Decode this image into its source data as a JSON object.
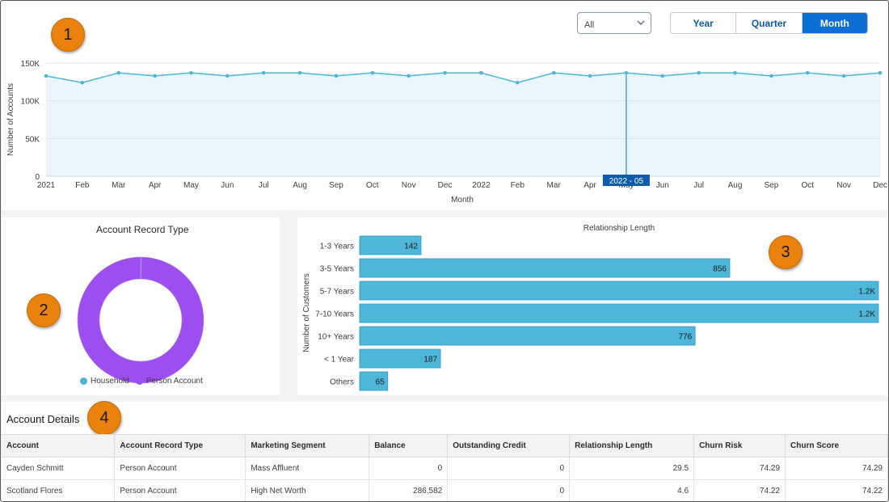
{
  "controls": {
    "period_select": {
      "value": "All"
    },
    "granularity": {
      "options": [
        "Year",
        "Quarter",
        "Month"
      ],
      "selected": "Month"
    }
  },
  "callouts": [
    "1",
    "2",
    "3",
    "4"
  ],
  "accounts_chart": {
    "type": "line",
    "ylabel": "Number of Accounts",
    "xlabel": "Month",
    "y_ticks": [
      "150K",
      "100K",
      "50K",
      "0"
    ],
    "x_tick_labels": [
      "2021",
      "Feb",
      "Mar",
      "Apr",
      "May",
      "Jun",
      "Jul",
      "Aug",
      "Sep",
      "Oct",
      "Nov",
      "Dec",
      "2022",
      "Feb",
      "Mar",
      "Apr",
      "May",
      "Jun",
      "Jul",
      "Aug",
      "Sep",
      "Oct",
      "Nov",
      "Dec"
    ],
    "values": [
      133000,
      124000,
      137000,
      133000,
      137000,
      133000,
      137000,
      137000,
      133000,
      137000,
      133000,
      137000,
      137000,
      124000,
      137000,
      133000,
      137000,
      133000,
      137000,
      137000,
      133000,
      137000,
      133000,
      137000
    ],
    "ylim": [
      0,
      150000
    ],
    "tooltip_label": "2022 - 05",
    "tooltip_index": 16,
    "line_color": "#4db6d9",
    "fill_color": "#e9f6fb"
  },
  "record_type_chart": {
    "type": "pie",
    "title": "Account Record Type",
    "legend": [
      {
        "label": "Household",
        "color": "#4bb5d8"
      },
      {
        "label": "Person Account",
        "color": "#9d4ef0"
      }
    ],
    "values": [
      0.2,
      99.8
    ]
  },
  "relationship_chart": {
    "type": "bar",
    "title": "Relationship Length",
    "ylabel": "Number of Customers",
    "categories": [
      "1-3 Years",
      "3-5 Years",
      "5-7 Years",
      "7-10 Years",
      "10+ Years",
      "< 1 Year",
      "Others"
    ],
    "values": [
      142,
      856,
      1200,
      1200,
      776,
      187,
      65
    ],
    "value_labels": [
      "142",
      "856",
      "1.2K",
      "1.2K",
      "776",
      "187",
      "65"
    ],
    "xlim": [
      0,
      1200
    ],
    "bar_color": "#4db6d9"
  },
  "details": {
    "title": "Account Details",
    "columns": [
      "Account",
      "Account Record Type",
      "Marketing Segment",
      "Balance",
      "Outstanding Credit",
      "Relationship Length",
      "Churn Risk",
      "Churn Score"
    ],
    "rows": [
      [
        "Cayden Schmitt",
        "Person Account",
        "Mass Affluent",
        "0",
        "0",
        "29.5",
        "74.29",
        "74.29"
      ],
      [
        "Scotland Flores",
        "Person Account",
        "High Net Worth",
        "286,582",
        "0",
        "4.6",
        "74.22",
        "74.22"
      ]
    ]
  }
}
